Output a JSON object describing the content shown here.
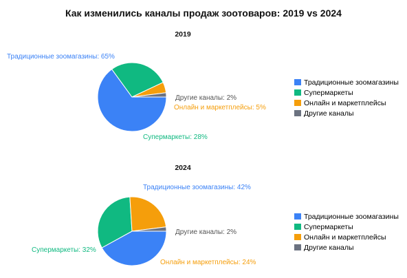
{
  "title": "Как изменились каналы продаж зоотоваров: 2019 vs 2024",
  "legend": [
    {
      "label": "Традиционные зоомагазины",
      "color": "#3b82f6"
    },
    {
      "label": "Супермаркеты",
      "color": "#10b981"
    },
    {
      "label": "Онлайн и маркетплейсы",
      "color": "#f59e0b"
    },
    {
      "label": "Другие каналы",
      "color": "#6b7280"
    }
  ],
  "chart_data": [
    {
      "type": "pie",
      "title": "2019",
      "labels": [
        "Традиционные зоомагазины",
        "Супермаркеты",
        "Онлайн и маркетплейсы",
        "Другие каналы"
      ],
      "values": [
        65,
        28,
        5,
        2
      ],
      "data_labels": [
        "Традиционные зоомагазины: 65%",
        "Супермаркеты: 28%",
        "Онлайн и маркетплейсы: 5%",
        "Другие каналы: 2%"
      ],
      "colors": [
        "#3b82f6",
        "#10b981",
        "#f59e0b",
        "#6b7280"
      ],
      "legend_position": "right"
    },
    {
      "type": "pie",
      "title": "2024",
      "labels": [
        "Традиционные зоомагазины",
        "Супермаркеты",
        "Онлайн и маркетплейсы",
        "Другие каналы"
      ],
      "values": [
        42,
        32,
        24,
        2
      ],
      "data_labels": [
        "Традиционные зоомагазины: 42%",
        "Супермаркеты: 32%",
        "Онлайн и маркетплейсы: 24%",
        "Другие каналы: 2%"
      ],
      "colors": [
        "#3b82f6",
        "#10b981",
        "#f59e0b",
        "#6b7280"
      ],
      "legend_position": "right"
    }
  ]
}
